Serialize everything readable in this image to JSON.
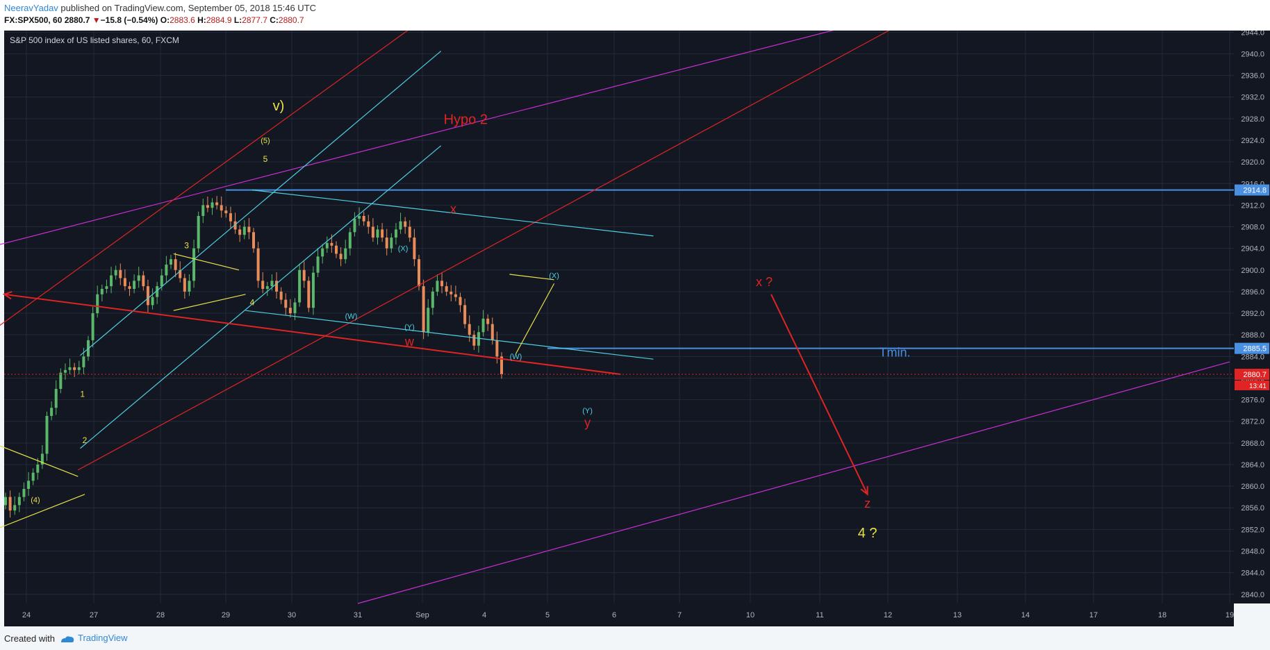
{
  "header": {
    "author": "NeeravYadav",
    "published": " published on TradingView.com, September 05, 2018 15:46 UTC",
    "symbol": "FX:SPX500, 60",
    "last": "2880.7",
    "down_glyph": "▼",
    "change": "−15.8 (−0.54%)",
    "o_label": "O:",
    "o": "2883.6",
    "h_label": "H:",
    "h": "2884.9",
    "l_label": "L:",
    "l": "2877.7",
    "c_label": "C:",
    "c": "2880.7"
  },
  "footer": {
    "created": "Created with",
    "brand": "TradingView"
  },
  "colors": {
    "background": "#131722",
    "grid": "#232a3a",
    "axis_text": "#b2b5be",
    "candle_up": "#5bb86a",
    "candle_down": "#e98c5a",
    "red": "#e02424",
    "cyan": "#4dd0e1",
    "magenta": "#c92fd6",
    "yellow": "#e8e24a",
    "blue": "#4a90e2"
  },
  "chart_data": {
    "type": "candlestick",
    "title": "S&P 500 index of US listed shares, 60, FXCM",
    "x_ticks": [
      "24",
      "27",
      "28",
      "29",
      "30",
      "31",
      "Sep",
      "4",
      "5",
      "6",
      "7",
      "10",
      "11",
      "12",
      "13",
      "14",
      "17",
      "18",
      "19"
    ],
    "y_ticks": [
      2840.0,
      2844.0,
      2848.0,
      2852.0,
      2856.0,
      2860.0,
      2864.0,
      2868.0,
      2872.0,
      2876.0,
      2880.0,
      2884.0,
      2888.0,
      2892.0,
      2896.0,
      2900.0,
      2904.0,
      2908.0,
      2912.0,
      2916.0,
      2920.0,
      2924.0,
      2928.0,
      2932.0,
      2936.0,
      2940.0,
      2944.0
    ],
    "ylim": [
      2838.3,
      2944.3
    ],
    "grid": true,
    "price_labels": [
      {
        "value": 2914.8,
        "text": "2914.8",
        "color": "#4a90e2"
      },
      {
        "value": 2885.5,
        "text": "2885.5",
        "color": "#4a90e2"
      },
      {
        "value": 2880.7,
        "text": "2880.7",
        "color": "#e02424",
        "sub": "13:41"
      }
    ],
    "horizontal_levels": [
      {
        "value": 2914.8,
        "from_x": "29",
        "to_x": "right edge",
        "color": "#4a90e2"
      },
      {
        "value": 2885.5,
        "from_x": "5",
        "to_x": "right edge",
        "color": "#4a90e2"
      }
    ],
    "last_price_line": 2880.7,
    "closes": [
      2858.0,
      2855.5,
      2856.5,
      2858.0,
      2859.5,
      2861.0,
      2862.5,
      2864.0,
      2866.0,
      2873.0,
      2874.5,
      2878.0,
      2881.0,
      2881.5,
      2882.0,
      2881.5,
      2882.0,
      2884.0,
      2887.0,
      2892.0,
      2895.5,
      2896.5,
      2897.0,
      2899.0,
      2900.0,
      2898.5,
      2897.0,
      2896.5,
      2898.0,
      2899.0,
      2897.0,
      2893.5,
      2895.0,
      2897.0,
      2899.0,
      2901.0,
      2902.0,
      2900.0,
      2898.5,
      2896.0,
      2898.0,
      2904.0,
      2910.0,
      2912.0,
      2911.5,
      2912.5,
      2912.0,
      2911.0,
      2910.5,
      2909.0,
      2907.5,
      2906.5,
      2908.0,
      2907.0,
      2904.0,
      2898.0,
      2896.5,
      2897.0,
      2898.0,
      2896.0,
      2894.5,
      2893.0,
      2892.0,
      2894.0,
      2900.0,
      2898.0,
      2893.0,
      2899.5,
      2902.5,
      2904.0,
      2905.0,
      2904.5,
      2903.0,
      2902.0,
      2904.0,
      2907.0,
      2909.5,
      2910.0,
      2909.0,
      2908.0,
      2906.0,
      2907.5,
      2906.0,
      2904.0,
      2906.0,
      2907.5,
      2909.0,
      2908.0,
      2906.0,
      2902.0,
      2897.0,
      2888.5,
      2893.0,
      2896.0,
      2898.0,
      2897.0,
      2896.0,
      2895.5,
      2895.0,
      2893.5,
      2890.0,
      2888.0,
      2886.0,
      2888.5,
      2891.0,
      2890.0,
      2887.0,
      2884.0,
      2880.7
    ],
    "trendlines": [
      {
        "color": "#c92fd6",
        "points": [
          [
            "23.6",
            2904.7
          ],
          [
            "11.8",
            2946.3
          ]
        ]
      },
      {
        "color": "#c92fd6",
        "points": [
          [
            "31",
            2838.3
          ],
          [
            "19",
            2883.0
          ]
        ]
      },
      {
        "color": "#e02424",
        "points": [
          [
            "23.6",
            2889.7
          ],
          [
            "Sep",
            2946.3
          ]
        ]
      },
      {
        "color": "#e02424",
        "points": [
          [
            "26.3",
            2863.0
          ],
          [
            "12.3",
            2946.3
          ]
        ]
      },
      {
        "color": "#4dd0e1",
        "points": [
          [
            "26.4",
            2884.2
          ],
          [
            "Sep+0.3",
            2940.5
          ]
        ]
      },
      {
        "color": "#4dd0e1",
        "points": [
          [
            "26.4",
            2867.0
          ],
          [
            "Sep+0.3",
            2923.0
          ]
        ]
      },
      {
        "color": "#4dd0e1",
        "points": [
          [
            "29.4",
            2914.8
          ],
          [
            "6.6",
            2906.3
          ]
        ]
      },
      {
        "color": "#4dd0e1",
        "points": [
          [
            "29.3",
            2892.5
          ],
          [
            "6.6",
            2883.5
          ]
        ]
      },
      {
        "color": "#e8e24a",
        "points": [
          [
            "23.6",
            2867.5
          ],
          [
            "26.3",
            2861.8
          ]
        ]
      },
      {
        "color": "#e8e24a",
        "points": [
          [
            "23.6",
            2852.3
          ],
          [
            "26.6",
            2858.5
          ]
        ]
      },
      {
        "color": "#e8e24a",
        "points": [
          [
            "28.2",
            2903.0
          ],
          [
            "29.2",
            2900.0
          ]
        ]
      },
      {
        "color": "#e8e24a",
        "points": [
          [
            "28.2",
            2892.5
          ],
          [
            "29.3",
            2895.5
          ]
        ]
      },
      {
        "color": "#e8e24a",
        "points": [
          [
            "4.4",
            2899.2
          ],
          [
            "5.1",
            2898.2
          ]
        ]
      },
      {
        "color": "#e8e24a",
        "points": [
          [
            "4.5",
            2884.5
          ],
          [
            "5.1",
            2897.5
          ]
        ]
      }
    ],
    "arrows": [
      {
        "color": "#e02424",
        "points": [
          [
            "6.1",
            2880.7
          ],
          [
            "9.8",
            2895.5
          ]
        ]
      },
      {
        "color": "#e02424",
        "points": [
          [
            "10.3",
            2895.5
          ],
          [
            "11.7",
            2858.5
          ]
        ]
      }
    ],
    "annotations": [
      {
        "text": "v)",
        "at": [
          "29.8",
          2929.5
        ],
        "color": "#e8e24a",
        "size": 20
      },
      {
        "text": "Hypo 2",
        "at": [
          "Sep+0.7",
          2927.0
        ],
        "color": "#e02424",
        "size": 20
      },
      {
        "text": "(5)",
        "at": [
          "29.6",
          2923.5
        ],
        "color": "#e8e24a",
        "size": 11
      },
      {
        "text": "5",
        "at": [
          "29.6",
          2920.0
        ],
        "color": "#e8e24a",
        "size": 12
      },
      {
        "text": "3",
        "at": [
          "28.4",
          2904.0
        ],
        "color": "#e8e24a",
        "size": 12
      },
      {
        "text": "4",
        "at": [
          "29.4",
          2893.5
        ],
        "color": "#e8e24a",
        "size": 12
      },
      {
        "text": "1",
        "at": [
          "26.5",
          2876.5
        ],
        "color": "#e8e24a",
        "size": 12
      },
      {
        "text": "2",
        "at": [
          "26.6",
          2868.0
        ],
        "color": "#e8e24a",
        "size": 12
      },
      {
        "text": "(4)",
        "at": [
          "24.4",
          2857.0
        ],
        "color": "#e8e24a",
        "size": 11
      },
      {
        "text": "(X)",
        "at": [
          "31.7",
          2903.5
        ],
        "color": "#4dd0e1",
        "size": 11
      },
      {
        "text": "(W)",
        "at": [
          "30.9",
          2891.0
        ],
        "color": "#4dd0e1",
        "size": 11
      },
      {
        "text": "(Y)",
        "at": [
          "31.8",
          2889.0
        ],
        "color": "#4dd0e1",
        "size": 11
      },
      {
        "text": "w",
        "at": [
          "31.8",
          2886.0
        ],
        "color": "#e02424",
        "size": 18
      },
      {
        "text": "x",
        "at": [
          "Sep+0.5",
          2910.5
        ],
        "color": "#e02424",
        "size": 18
      },
      {
        "text": "(X)",
        "at": [
          "5.1",
          2898.5
        ],
        "color": "#4dd0e1",
        "size": 11
      },
      {
        "text": "(W)",
        "at": [
          "4.5",
          2883.5
        ],
        "color": "#4dd0e1",
        "size": 11
      },
      {
        "text": "(Y)",
        "at": [
          "5.6",
          2873.5
        ],
        "color": "#4dd0e1",
        "size": 11
      },
      {
        "text": "y",
        "at": [
          "5.6",
          2871.0
        ],
        "color": "#e02424",
        "size": 18
      },
      {
        "text": "x ?",
        "at": [
          "10.2",
          2897.0
        ],
        "color": "#e02424",
        "size": 18
      },
      {
        "text": "Tmin.",
        "at": [
          "12.1",
          2884.0
        ],
        "color": "#4a90e2",
        "size": 18
      },
      {
        "text": "z",
        "at": [
          "11.7",
          2856.0
        ],
        "color": "#e02424",
        "size": 18
      },
      {
        "text": "4 ?",
        "at": [
          "11.7",
          2850.5
        ],
        "color": "#e8e24a",
        "size": 20
      }
    ]
  }
}
